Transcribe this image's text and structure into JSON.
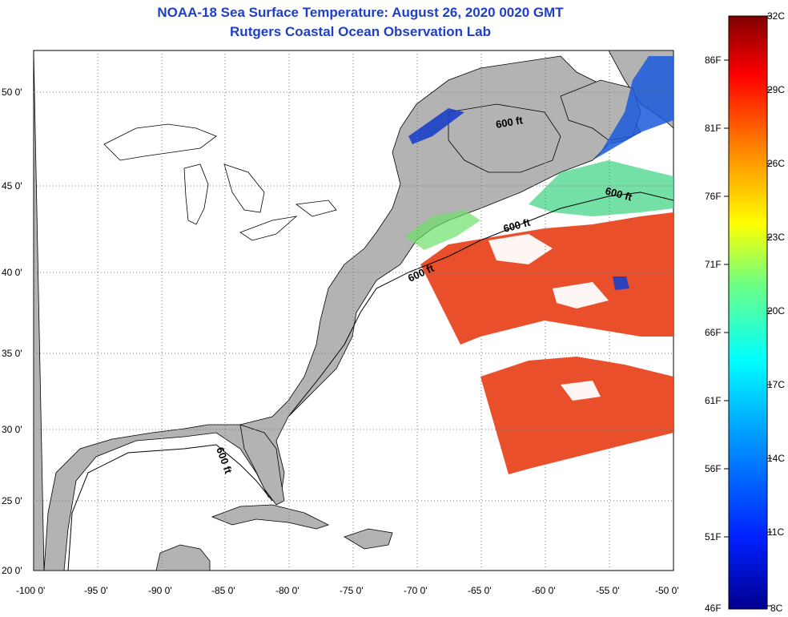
{
  "title": "NOAA-18 Sea Surface Temperature:  August 26, 2020 0020 GMT",
  "subtitle": "Rutgers Coastal Ocean Observation Lab",
  "lat_labels": [
    "50 0'",
    "45 0'",
    "40 0'",
    "35 0'",
    "30 0'",
    "25 0'",
    "20 0'"
  ],
  "lon_labels": [
    "-100 0'",
    "-95 0'",
    "-90 0'",
    "-85 0'",
    "-80 0'",
    "-75 0'",
    "-70 0'",
    "-65 0'",
    "-60 0'",
    "-55 0'",
    "-50 0'"
  ],
  "contour_labels": [
    "600 ft",
    "600 ft",
    "600 ft",
    "600 ft",
    "600 ft"
  ],
  "colorbar": {
    "celsius": [
      "32C",
      "29C",
      "26C",
      "23C",
      "20C",
      "17C",
      "14C",
      "11C",
      "8C"
    ],
    "fahrenheit": [
      "86F",
      "81F",
      "76F",
      "71F",
      "66F",
      "61F",
      "56F",
      "51F",
      "46F"
    ]
  },
  "colors": {
    "land": "#b3b3b3",
    "ocean_nodata": "#ffffff",
    "title": "#1f3fc4",
    "warm": "#e8401a",
    "cool": "#1a5adc"
  }
}
